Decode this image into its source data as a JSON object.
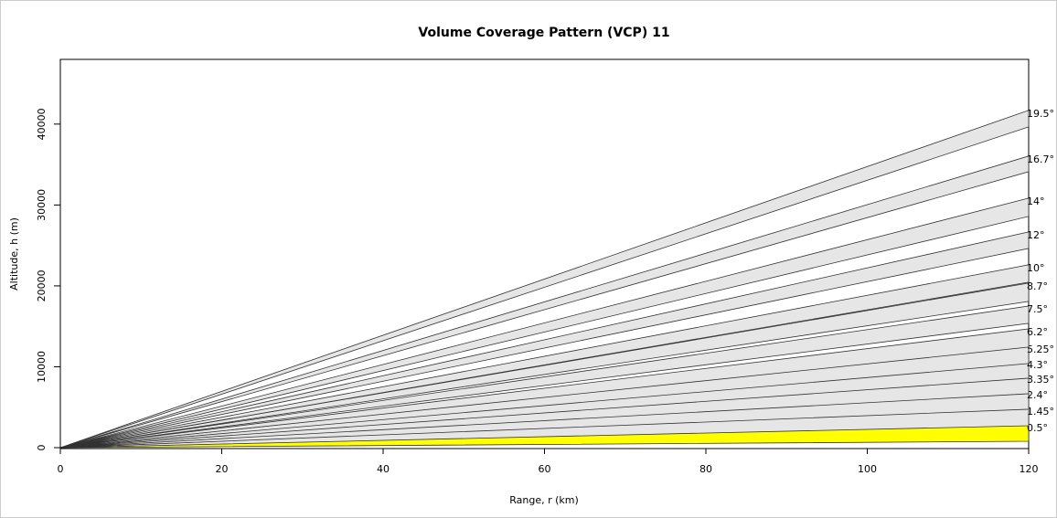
{
  "chart_data": {
    "type": "beam",
    "title": "Volume Coverage Pattern (VCP) 11",
    "x_label": "Range, r (km)",
    "y_label": "Altitude, h (m)",
    "xlim": [
      0,
      120
    ],
    "xticks": [
      0,
      20,
      40,
      60,
      80,
      100,
      120
    ],
    "ylim": [
      0,
      48000
    ],
    "yticks": [
      0,
      10000,
      20000,
      30000,
      40000
    ],
    "series": [
      {
        "name": "0.5°",
        "color": "#ffff00",
        "values": [
          790,
          2820
        ]
      },
      {
        "name": "1.45°",
        "color": "#e6e6e6",
        "values": [
          2710,
          4860
        ]
      },
      {
        "name": "2.4°",
        "color": "#e6e6e6",
        "values": [
          4750,
          6890
        ]
      },
      {
        "name": "3.35°",
        "color": "#e6e6e6",
        "values": [
          6670,
          8810
        ]
      },
      {
        "name": "4.3°",
        "color": "#e6e6e6",
        "values": [
          8590,
          10620
        ]
      },
      {
        "name": "5.25°",
        "color": "#e6e6e6",
        "values": [
          10400,
          12540
        ]
      },
      {
        "name": "6.2°",
        "color": "#e6e6e6",
        "values": [
          12430,
          14690
        ]
      },
      {
        "name": "7.5°",
        "color": "#e6e6e6",
        "values": [
          15370,
          17510
        ]
      },
      {
        "name": "8.7°",
        "color": "#e6e6e6",
        "values": [
          18080,
          20340
        ]
      },
      {
        "name": "10°",
        "color": "#e6e6e6",
        "values": [
          20450,
          22600
        ]
      },
      {
        "name": "12°",
        "color": "#e6e6e6",
        "values": [
          24630,
          26670
        ]
      },
      {
        "name": "14°",
        "color": "#e6e6e6",
        "values": [
          28590,
          30850
        ]
      },
      {
        "name": "16.7°",
        "color": "#e6e6e6",
        "values": [
          34120,
          36050
        ]
      },
      {
        "name": "19.5°",
        "color": "#e6e6e6",
        "values": [
          39660,
          41700
        ]
      }
    ]
  }
}
